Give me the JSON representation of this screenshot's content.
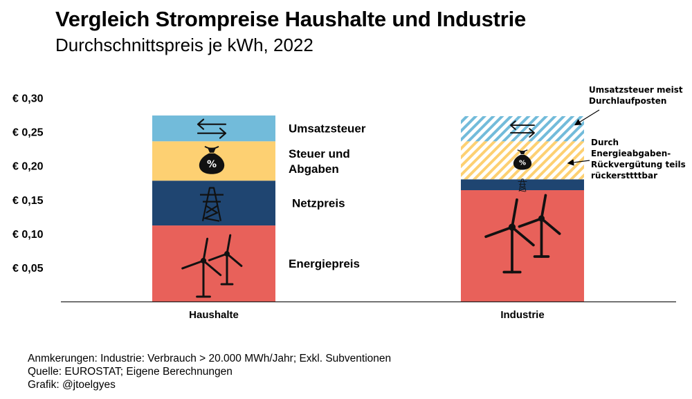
{
  "chart_data": {
    "type": "stacked-bar",
    "title": "Vergleich Strompreise Haushalte und Industrie",
    "subtitle": "Durchschnittspreis je kWh, 2022",
    "ylim": [
      0,
      0.3
    ],
    "y_ticks": [
      {
        "value": 0.3,
        "label": "€ 0,30"
      },
      {
        "value": 0.25,
        "label": "€ 0,25"
      },
      {
        "value": 0.2,
        "label": "€ 0,20"
      },
      {
        "value": 0.15,
        "label": "€ 0,15"
      },
      {
        "value": 0.1,
        "label": "€ 0,10"
      },
      {
        "value": 0.05,
        "label": "€ 0,05"
      }
    ],
    "categories": [
      "Haushalte",
      "Industrie"
    ],
    "series": [
      {
        "name": "Energiepreis",
        "color": "#E8615A",
        "icon": "wind-turbine-icon",
        "values": [
          0.112,
          0.164
        ],
        "hatched": [
          false,
          false
        ]
      },
      {
        "name": "Netzpreis",
        "color": "#1F4571",
        "icon": "power-pylon-icon",
        "values": [
          0.066,
          0.016
        ],
        "hatched": [
          false,
          false
        ]
      },
      {
        "name": "Steuer und Abgaben",
        "color": "#FDD072",
        "icon": "money-bag-icon",
        "values": [
          0.058,
          0.056
        ],
        "hatched": [
          false,
          true
        ]
      },
      {
        "name": "Umsatzsteuer",
        "color": "#72BBDA",
        "icon": "exchange-arrows-icon",
        "values": [
          0.038,
          0.037
        ],
        "hatched": [
          false,
          true
        ]
      }
    ],
    "segment_labels": [
      {
        "series": "Umsatzsteuer",
        "lines": [
          "Umsatzsteuer"
        ]
      },
      {
        "series": "Steuer und Abgaben",
        "lines": [
          "Steuer und",
          "Abgaben"
        ]
      },
      {
        "series": "Netzpreis",
        "lines": [
          "Netzpreis"
        ]
      },
      {
        "series": "Energiepreis",
        "lines": [
          "Energiepreis"
        ]
      }
    ],
    "annotations": [
      {
        "target_series": "Umsatzsteuer",
        "lines": [
          "Umsatzsteuer meist",
          "Durchlaufposten"
        ]
      },
      {
        "target_series": "Steuer und Abgaben",
        "lines": [
          "Durch",
          "Energieabgaben-",
          "Rückvergütung teils",
          "rückersttttbar"
        ]
      }
    ]
  },
  "notes": {
    "line1": "Anmkerungen: Industrie: Verbrauch > 20.000 MWh/Jahr; Exkl. Subventionen",
    "line2": "Quelle: EUROSTAT; Eigene Berechnungen",
    "line3": "Grafik: @jtoelgyes"
  }
}
